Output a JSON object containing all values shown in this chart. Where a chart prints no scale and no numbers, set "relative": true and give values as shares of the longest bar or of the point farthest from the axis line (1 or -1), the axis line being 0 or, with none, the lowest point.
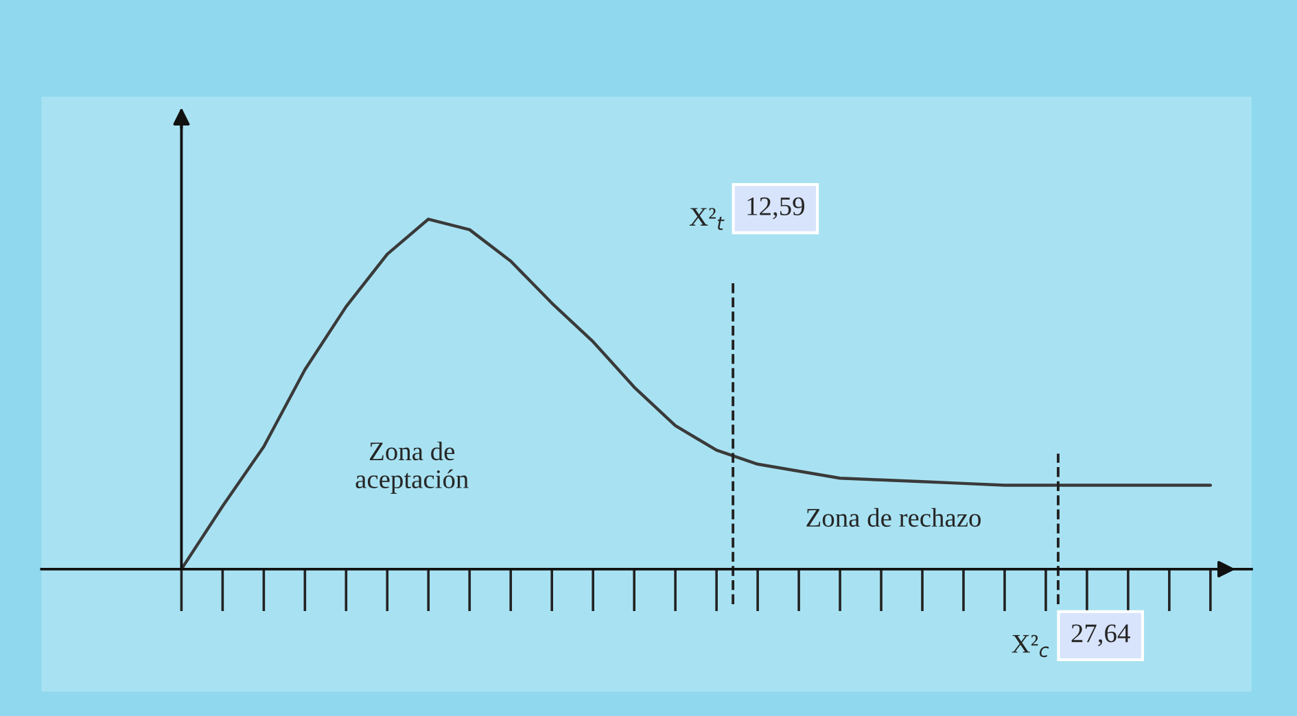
{
  "chart_data": {
    "type": "line",
    "relative": true,
    "categories": [
      null,
      null,
      null,
      null,
      null,
      null,
      null,
      null,
      null,
      null,
      null,
      null,
      null,
      null,
      null,
      null,
      null,
      null,
      null,
      null,
      null,
      null,
      null,
      null,
      null,
      null
    ],
    "series": [
      {
        "color": "#3a3a3a",
        "values": [
          0,
          0.18,
          0.35,
          0.57,
          0.75,
          0.9,
          1,
          0.97,
          0.88,
          0.76,
          0.65,
          0.52,
          0.41,
          0.34,
          0.3,
          0.28,
          0.26,
          0.255,
          0.25,
          0.245,
          0.24,
          0.24,
          0.24,
          0.24,
          0.24,
          0.24
        ]
      }
    ],
    "annotations": [
      "Zona de\naceptación",
      "Zona de rechazo",
      "X²$_{t}$",
      "12,59",
      "X²$_{c}$",
      "27,64"
    ],
    "grid": false,
    "legend": false,
    "marker": "none",
    "line_style": "solid"
  }
}
